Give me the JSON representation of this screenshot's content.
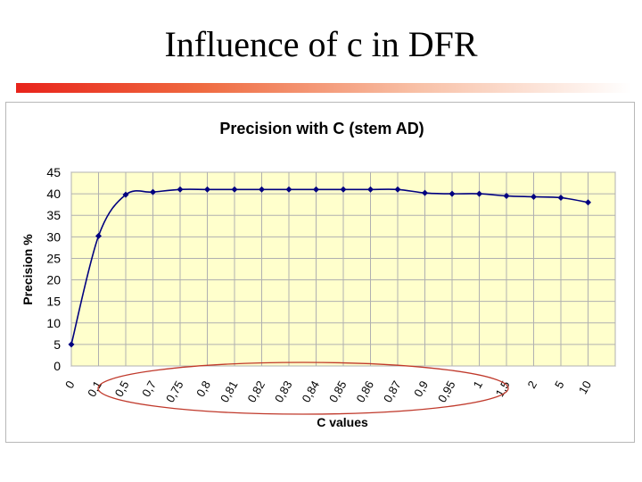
{
  "slide": {
    "title": "Influence of c in DFR"
  },
  "colors": {
    "title_rule": "#e8231b",
    "plot_area": "#ffffcc",
    "series_line": "#000080",
    "highlight_ellipse": "#c0392b"
  },
  "chart_data": {
    "type": "line",
    "title": "Precision with C (stem AD)",
    "xlabel": "C values",
    "ylabel": "Precision %",
    "categories": [
      "0",
      "0,1",
      "0,5",
      "0,7",
      "0,75",
      "0,8",
      "0,81",
      "0,82",
      "0,83",
      "0,84",
      "0,85",
      "0,86",
      "0,87",
      "0,9",
      "0,95",
      "1",
      "1,5",
      "2",
      "5",
      "10"
    ],
    "series": [
      {
        "values": [
          5,
          30.2,
          39.8,
          40.4,
          41,
          41,
          41,
          41,
          41,
          41,
          41,
          41,
          41,
          40.2,
          40,
          40,
          39.5,
          39.3,
          39.1,
          38
        ]
      }
    ],
    "yticks": [
      0,
      5,
      10,
      15,
      20,
      25,
      30,
      35,
      40,
      45
    ],
    "ylim": [
      0,
      45
    ],
    "grid": true,
    "legend": false
  }
}
